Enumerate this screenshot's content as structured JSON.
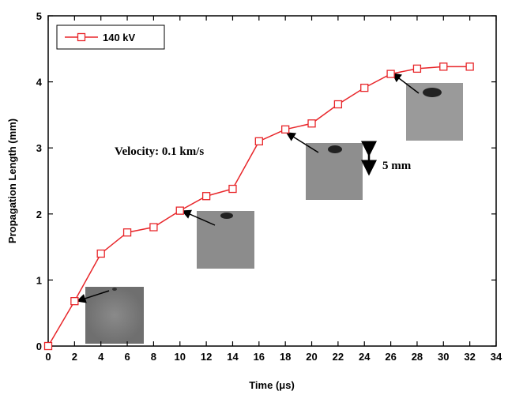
{
  "chart_data": {
    "type": "line",
    "x_label": "Time (μs)",
    "y_label": "Propagation Length (mm)",
    "x": [
      0,
      2,
      4,
      6,
      8,
      10,
      12,
      14,
      16,
      18,
      20,
      22,
      24,
      26,
      28,
      30,
      32
    ],
    "series": [
      {
        "name": "140 kV",
        "color": "#e8262a",
        "values": [
          0,
          0.68,
          1.4,
          1.72,
          1.8,
          2.05,
          2.27,
          2.38,
          3.1,
          3.28,
          3.37,
          3.66,
          3.91,
          4.12,
          4.2,
          4.23,
          4.23
        ]
      }
    ],
    "xlim": [
      0,
      34
    ],
    "xticks": [
      0,
      2,
      4,
      6,
      8,
      10,
      12,
      14,
      16,
      18,
      20,
      22,
      24,
      26,
      28,
      30,
      32,
      34
    ],
    "ylim": [
      0,
      5
    ],
    "yticks": [
      0,
      1,
      2,
      3,
      4,
      5
    ],
    "annotations": [
      "Velocity: 0.1 km/s",
      "5 mm"
    ],
    "legend": "upper left"
  }
}
